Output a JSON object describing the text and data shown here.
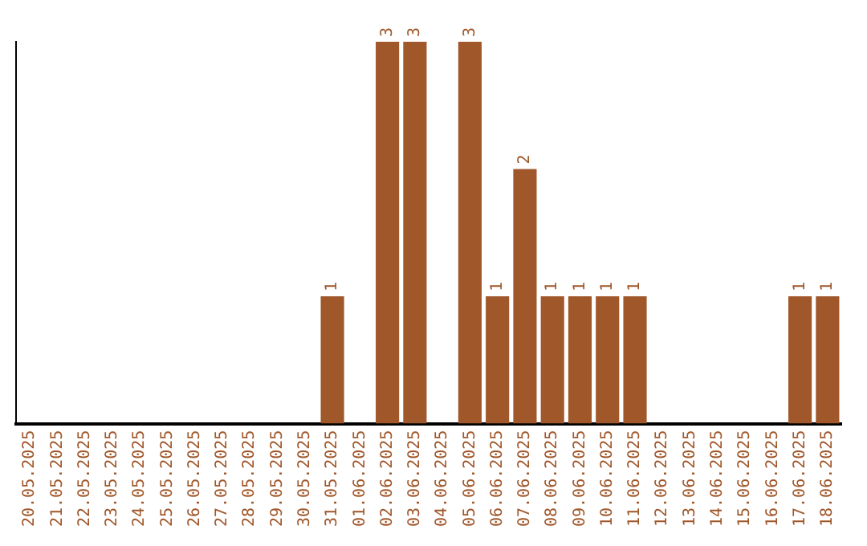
{
  "chart_data": {
    "type": "bar",
    "categories": [
      "20.05.2025",
      "21.05.2025",
      "22.05.2025",
      "23.05.2025",
      "24.05.2025",
      "25.05.2025",
      "26.05.2025",
      "27.05.2025",
      "28.05.2025",
      "29.05.2025",
      "30.05.2025",
      "31.05.2025",
      "01.06.2025",
      "02.06.2025",
      "03.06.2025",
      "04.06.2025",
      "05.06.2025",
      "06.06.2025",
      "07.06.2025",
      "08.06.2025",
      "09.06.2025",
      "10.06.2025",
      "11.06.2025",
      "12.06.2025",
      "13.06.2025",
      "14.06.2025",
      "15.06.2025",
      "16.06.2025",
      "17.06.2025",
      "18.06.2025"
    ],
    "values": [
      0,
      0,
      0,
      0,
      0,
      0,
      0,
      0,
      0,
      0,
      0,
      1,
      0,
      3,
      3,
      0,
      3,
      1,
      2,
      1,
      1,
      1,
      1,
      0,
      0,
      0,
      0,
      0,
      1,
      1
    ],
    "value_labels": [
      null,
      null,
      null,
      null,
      null,
      null,
      null,
      null,
      null,
      null,
      null,
      "1",
      null,
      "3",
      "3",
      null,
      "3",
      "1",
      "2",
      "1",
      "1",
      "1",
      "1",
      null,
      null,
      null,
      null,
      null,
      "1",
      "1"
    ],
    "color": "#a0572a",
    "ylim": [
      0,
      3
    ],
    "tick_labels": "x",
    "grid": false,
    "legend": false
  }
}
